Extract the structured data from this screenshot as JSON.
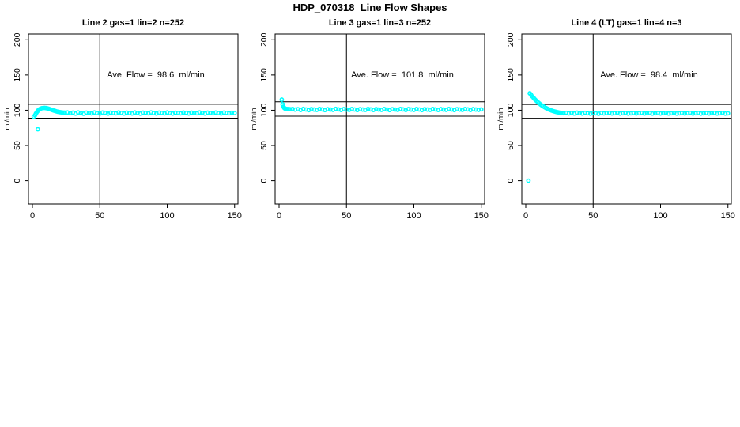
{
  "title": "HDP_070318  Line Flow Shapes",
  "colors": {
    "points": "#00ffff",
    "axis": "#000000",
    "background": "#ffffff",
    "text": "#000000"
  },
  "axes": {
    "x_ticks": [
      0,
      50,
      100,
      150
    ],
    "y_ticks": [
      0,
      50,
      100,
      150,
      200
    ],
    "ylabel": "ml/min",
    "x_range": [
      0,
      150
    ],
    "y_range": [
      0,
      200
    ],
    "grid": false
  },
  "chart_data": [
    {
      "type": "scatter",
      "title": "Line 2 gas=1 lin=2 n=252",
      "annotation": "Ave. Flow =  98.6  ml/min",
      "ave_flow": 98.6,
      "xlabel": "",
      "ylabel": "ml/min",
      "legend": null,
      "ref_lines": {
        "horizontal": [
          108.5,
          88.7
        ],
        "vertical": [
          50
        ]
      },
      "points": [
        [
          1,
          91
        ],
        [
          4,
          73
        ],
        [
          2,
          93
        ],
        [
          2.6,
          95.2
        ],
        [
          3.2,
          97
        ],
        [
          3.8,
          98.6
        ],
        [
          4.4,
          100
        ],
        [
          5,
          101.1
        ],
        [
          6,
          102.2
        ],
        [
          7,
          102.9
        ],
        [
          8,
          103.2
        ],
        [
          9,
          103.3
        ],
        [
          10,
          103.1
        ],
        [
          11,
          102.7
        ],
        [
          12,
          102.1
        ],
        [
          13,
          101.5
        ],
        [
          14,
          100.8
        ],
        [
          15,
          100.1
        ],
        [
          16,
          99.5
        ],
        [
          17,
          98.9
        ],
        [
          18,
          98.3
        ],
        [
          19,
          97.8
        ],
        [
          20,
          97.4
        ],
        [
          21,
          97.1
        ],
        [
          22,
          96.8
        ],
        [
          23,
          96.6
        ],
        [
          24,
          96.5
        ],
        [
          26,
          96.8
        ],
        [
          28,
          95.9
        ],
        [
          30,
          96.5
        ],
        [
          32,
          95.2
        ],
        [
          34,
          96.9
        ],
        [
          36,
          96.1
        ],
        [
          38,
          95
        ],
        [
          40,
          96.6
        ],
        [
          42,
          96.2
        ],
        [
          44,
          95.5
        ],
        [
          46,
          96.8
        ],
        [
          48,
          96
        ],
        [
          50,
          95.3
        ],
        [
          52,
          96.7
        ],
        [
          54,
          96.3
        ],
        [
          56,
          95.1
        ],
        [
          58,
          96.5
        ],
        [
          60,
          96
        ],
        [
          62,
          95.6
        ],
        [
          64,
          96.9
        ],
        [
          66,
          96.2
        ],
        [
          68,
          95.3
        ],
        [
          70,
          96.6
        ],
        [
          72,
          96
        ],
        [
          74,
          95.4
        ],
        [
          76,
          96.8
        ],
        [
          78,
          96.1
        ],
        [
          80,
          95.2
        ],
        [
          82,
          96.5
        ],
        [
          84,
          96.3
        ],
        [
          86,
          95.6
        ],
        [
          88,
          96.9
        ],
        [
          90,
          96
        ],
        [
          92,
          95.3
        ],
        [
          94,
          96.6
        ],
        [
          96,
          96.2
        ],
        [
          98,
          95.5
        ],
        [
          100,
          96.8
        ],
        [
          102,
          96
        ],
        [
          104,
          95.2
        ],
        [
          106,
          96.4
        ],
        [
          108,
          96.1
        ],
        [
          110,
          95.6
        ],
        [
          112,
          96.7
        ],
        [
          114,
          96.3
        ],
        [
          116,
          95.4
        ],
        [
          118,
          96.5
        ],
        [
          120,
          96
        ],
        [
          122,
          95.7
        ],
        [
          124,
          96.8
        ],
        [
          126,
          96.2
        ],
        [
          128,
          95.3
        ],
        [
          130,
          96.5
        ],
        [
          132,
          96.1
        ],
        [
          134,
          95.6
        ],
        [
          136,
          96.7
        ],
        [
          138,
          96
        ],
        [
          140,
          95.4
        ],
        [
          142,
          96.6
        ],
        [
          144,
          96.2
        ],
        [
          146,
          95.7
        ],
        [
          148,
          96.4
        ],
        [
          150,
          96
        ]
      ]
    },
    {
      "type": "scatter",
      "title": "Line 3 gas=1 lin=3 n=252",
      "annotation": "Ave. Flow =  101.8  ml/min",
      "ave_flow": 101.8,
      "xlabel": "",
      "ylabel": "ml/min",
      "legend": null,
      "ref_lines": {
        "horizontal": [
          112.0,
          91.6
        ],
        "vertical": [
          50
        ]
      },
      "points": [
        [
          2,
          115
        ],
        [
          2.6,
          108.5
        ],
        [
          3.2,
          105
        ],
        [
          3.8,
          103.3
        ],
        [
          4.4,
          102.4
        ],
        [
          5,
          102
        ],
        [
          6,
          101.8
        ],
        [
          7,
          101.6
        ],
        [
          8,
          101.5
        ],
        [
          10,
          101.8
        ],
        [
          12,
          100.9
        ],
        [
          14,
          101.5
        ],
        [
          16,
          100.4
        ],
        [
          18,
          101.9
        ],
        [
          20,
          101.1
        ],
        [
          22,
          100.2
        ],
        [
          24,
          101.6
        ],
        [
          26,
          101
        ],
        [
          28,
          100.5
        ],
        [
          30,
          101.8
        ],
        [
          32,
          101.2
        ],
        [
          34,
          100.3
        ],
        [
          36,
          101.5
        ],
        [
          38,
          101
        ],
        [
          40,
          100.6
        ],
        [
          42,
          101.9
        ],
        [
          44,
          101.2
        ],
        [
          46,
          100.4
        ],
        [
          48,
          101.6
        ],
        [
          50,
          101
        ],
        [
          52,
          100.5
        ],
        [
          54,
          101.7
        ],
        [
          56,
          101.1
        ],
        [
          58,
          100.3
        ],
        [
          60,
          101.5
        ],
        [
          62,
          101
        ],
        [
          64,
          100.6
        ],
        [
          66,
          101.8
        ],
        [
          68,
          101.2
        ],
        [
          70,
          100.4
        ],
        [
          72,
          101.6
        ],
        [
          74,
          101
        ],
        [
          76,
          100.5
        ],
        [
          78,
          101.7
        ],
        [
          80,
          101.1
        ],
        [
          82,
          100.3
        ],
        [
          84,
          101.5
        ],
        [
          86,
          101
        ],
        [
          88,
          100.6
        ],
        [
          90,
          101.8
        ],
        [
          92,
          101.2
        ],
        [
          94,
          100.4
        ],
        [
          96,
          101.6
        ],
        [
          98,
          101
        ],
        [
          100,
          100.5
        ],
        [
          102,
          101.7
        ],
        [
          104,
          101.1
        ],
        [
          106,
          100.3
        ],
        [
          108,
          101.5
        ],
        [
          110,
          101
        ],
        [
          112,
          100.6
        ],
        [
          114,
          101.8
        ],
        [
          116,
          101.2
        ],
        [
          118,
          100.4
        ],
        [
          120,
          101.6
        ],
        [
          122,
          101
        ],
        [
          124,
          100.5
        ],
        [
          126,
          101.7
        ],
        [
          128,
          101.1
        ],
        [
          130,
          100.3
        ],
        [
          132,
          101.5
        ],
        [
          134,
          101
        ],
        [
          136,
          100.6
        ],
        [
          138,
          101.8
        ],
        [
          140,
          101.2
        ],
        [
          142,
          100.4
        ],
        [
          144,
          101.6
        ],
        [
          146,
          101
        ],
        [
          148,
          100.5
        ],
        [
          150,
          101.2
        ]
      ]
    },
    {
      "type": "scatter",
      "title": "Line 4 (LT) gas=1 lin=4 n=3",
      "annotation": "Ave. Flow =  98.4  ml/min",
      "ave_flow": 98.4,
      "xlabel": "",
      "ylabel": "ml/min",
      "legend": null,
      "ref_lines": {
        "horizontal": [
          108.2,
          88.6
        ],
        "vertical": [
          50
        ]
      },
      "points": [
        [
          2,
          0
        ],
        [
          3,
          124
        ],
        [
          4,
          121.6
        ],
        [
          5,
          119.3
        ],
        [
          6,
          117.1
        ],
        [
          7,
          115.1
        ],
        [
          8,
          113.2
        ],
        [
          9,
          111.4
        ],
        [
          10,
          109.8
        ],
        [
          11,
          108.2
        ],
        [
          12,
          106.8
        ],
        [
          13,
          105.5
        ],
        [
          14,
          104.3
        ],
        [
          15,
          103.2
        ],
        [
          16,
          102.2
        ],
        [
          17,
          101.3
        ],
        [
          18,
          100.5
        ],
        [
          19,
          99.7
        ],
        [
          20,
          99
        ],
        [
          21,
          98.4
        ],
        [
          22,
          97.9
        ],
        [
          23,
          97.4
        ],
        [
          24,
          97
        ],
        [
          25,
          96.6
        ],
        [
          26,
          96.3
        ],
        [
          27,
          96
        ],
        [
          28,
          95.8
        ],
        [
          30,
          96.3
        ],
        [
          32,
          95.5
        ],
        [
          34,
          96.1
        ],
        [
          36,
          95.3
        ],
        [
          38,
          96.5
        ],
        [
          40,
          95.8
        ],
        [
          42,
          95.2
        ],
        [
          44,
          96.3
        ],
        [
          46,
          95.7
        ],
        [
          48,
          95.1
        ],
        [
          50,
          96.2
        ],
        [
          52,
          95.6
        ],
        [
          54,
          95
        ],
        [
          56,
          96.1
        ],
        [
          58,
          95.5
        ],
        [
          60,
          95.9
        ],
        [
          62,
          96.3
        ],
        [
          64,
          95.4
        ],
        [
          66,
          95.8
        ],
        [
          68,
          96.2
        ],
        [
          70,
          95.3
        ],
        [
          72,
          95.7
        ],
        [
          74,
          96.1
        ],
        [
          76,
          95.2
        ],
        [
          78,
          95.6
        ],
        [
          80,
          96
        ],
        [
          82,
          95.4
        ],
        [
          84,
          95.8
        ],
        [
          86,
          96.2
        ],
        [
          88,
          95.3
        ],
        [
          90,
          95.7
        ],
        [
          92,
          96.1
        ],
        [
          94,
          95.2
        ],
        [
          96,
          95.6
        ],
        [
          98,
          96
        ],
        [
          100,
          95.4
        ],
        [
          102,
          95.8
        ],
        [
          104,
          96.2
        ],
        [
          106,
          95.3
        ],
        [
          108,
          95.7
        ],
        [
          110,
          96.1
        ],
        [
          112,
          95.2
        ],
        [
          114,
          95.6
        ],
        [
          116,
          96
        ],
        [
          118,
          95.4
        ],
        [
          120,
          95.8
        ],
        [
          122,
          96.2
        ],
        [
          124,
          95.3
        ],
        [
          126,
          95.7
        ],
        [
          128,
          96.1
        ],
        [
          130,
          95.2
        ],
        [
          132,
          95.6
        ],
        [
          134,
          96
        ],
        [
          136,
          95.4
        ],
        [
          138,
          95.8
        ],
        [
          140,
          96.2
        ],
        [
          142,
          95.3
        ],
        [
          144,
          95.7
        ],
        [
          146,
          96.1
        ],
        [
          148,
          95.2
        ],
        [
          150,
          95.6
        ]
      ]
    }
  ]
}
